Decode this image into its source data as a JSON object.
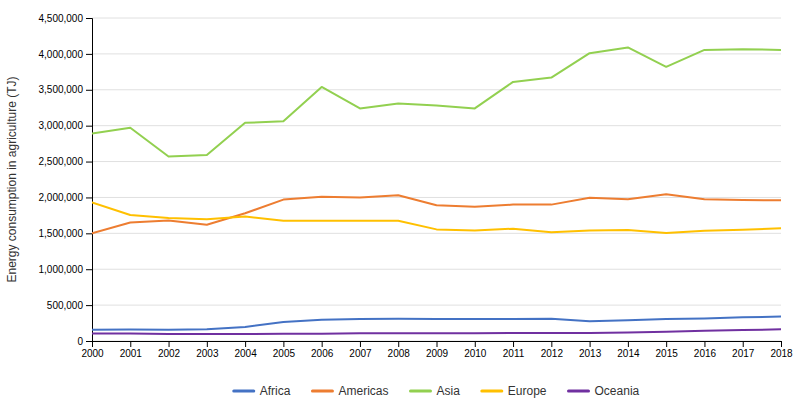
{
  "chart_data": {
    "type": "line",
    "y_label": "Energy consumption in agriculture (TJ)",
    "x": [
      2000,
      2001,
      2002,
      2003,
      2004,
      2005,
      2006,
      2007,
      2008,
      2009,
      2010,
      2011,
      2012,
      2013,
      2014,
      2015,
      2016,
      2017,
      2018
    ],
    "series": [
      {
        "name": "Africa",
        "color": "#4472c4",
        "values": [
          155000,
          160000,
          155000,
          165000,
          195000,
          265000,
          295000,
          305000,
          310000,
          305000,
          305000,
          305000,
          310000,
          275000,
          290000,
          305000,
          315000,
          330000,
          340000
        ]
      },
      {
        "name": "Americas",
        "color": "#ed7d31",
        "values": [
          1500000,
          1650000,
          1680000,
          1620000,
          1780000,
          1970000,
          2010000,
          2000000,
          2030000,
          1890000,
          1870000,
          1900000,
          1900000,
          1995000,
          1975000,
          2045000,
          1975000,
          1965000,
          1960000
        ]
      },
      {
        "name": "Asia",
        "color": "#92d050",
        "values": [
          2890000,
          2970000,
          2570000,
          2590000,
          3040000,
          3060000,
          3540000,
          3240000,
          3310000,
          3280000,
          3240000,
          3610000,
          3670000,
          4010000,
          4090000,
          3820000,
          4055000,
          4065000,
          4055000
        ]
      },
      {
        "name": "Europe",
        "color": "#ffc000",
        "values": [
          1930000,
          1755000,
          1715000,
          1695000,
          1735000,
          1675000,
          1675000,
          1675000,
          1675000,
          1555000,
          1540000,
          1565000,
          1515000,
          1540000,
          1545000,
          1505000,
          1535000,
          1550000,
          1570000
        ]
      },
      {
        "name": "Oceania",
        "color": "#7030a0",
        "values": [
          105000,
          103000,
          98000,
          98000,
          98000,
          102000,
          102000,
          108000,
          108000,
          108000,
          108000,
          112000,
          112000,
          112000,
          118000,
          128000,
          142000,
          152000,
          162000
        ]
      }
    ],
    "xlim": [
      2000,
      2018
    ],
    "xticks": [
      2000,
      2001,
      2002,
      2003,
      2004,
      2005,
      2006,
      2007,
      2008,
      2009,
      2010,
      2011,
      2012,
      2013,
      2014,
      2015,
      2016,
      2017,
      2018
    ],
    "ylim": [
      0,
      4500000
    ],
    "yticks": [
      0,
      {
        "value": 500000,
        "label": "500,000"
      },
      {
        "value": 1000000,
        "label": "1,000,000"
      },
      {
        "value": 1500000,
        "label": "1,500,000"
      },
      {
        "value": 2000000,
        "label": "2,000,000"
      },
      {
        "value": 2500000,
        "label": "2,500,000"
      },
      {
        "value": 3000000,
        "label": "3,000,000"
      },
      {
        "value": 3500000,
        "label": "3,500,000"
      },
      {
        "value": 4000000,
        "label": "4,000,000"
      },
      {
        "value": 4500000,
        "label": "4,500,000"
      }
    ],
    "grid": true,
    "legend": "bottom"
  }
}
